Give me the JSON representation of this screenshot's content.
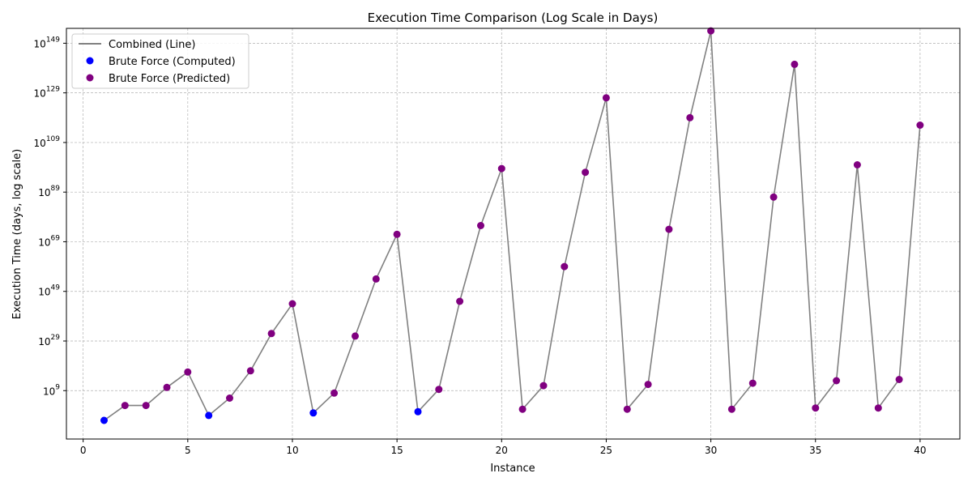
{
  "chart_data": {
    "type": "line",
    "title": "Execution Time Comparison (Log Scale in Days)",
    "xlabel": "Instance",
    "ylabel": "Execution Time (days, log scale)",
    "y_scale": "log",
    "grid": true,
    "legend_placement": "top-left",
    "xlim": [
      -0.8,
      41.9
    ],
    "xticks": [
      0,
      5,
      10,
      15,
      20,
      25,
      30,
      35,
      40
    ],
    "ylim_log10": [
      -10.5,
      155
    ],
    "yticks_log10": [
      9,
      29,
      49,
      69,
      89,
      109,
      129,
      149
    ],
    "yticks_labels": [
      {
        "base": "10",
        "exp": "9"
      },
      {
        "base": "10",
        "exp": "29"
      },
      {
        "base": "10",
        "exp": "49"
      },
      {
        "base": "10",
        "exp": "69"
      },
      {
        "base": "10",
        "exp": "89"
      },
      {
        "base": "10",
        "exp": "109"
      },
      {
        "base": "10",
        "exp": "129"
      },
      {
        "base": "10",
        "exp": "149"
      }
    ],
    "x": [
      1,
      2,
      3,
      4,
      5,
      6,
      7,
      8,
      9,
      10,
      11,
      12,
      13,
      14,
      15,
      16,
      17,
      18,
      19,
      20,
      21,
      22,
      23,
      24,
      25,
      26,
      27,
      28,
      29,
      30,
      31,
      32,
      33,
      34,
      35,
      36,
      37,
      38,
      39,
      40
    ],
    "log10_values": [
      -3,
      3,
      3,
      10.3,
      16.5,
      -1,
      6,
      17,
      32,
      44,
      0,
      8,
      31,
      54,
      72,
      0.5,
      9.5,
      45,
      75.5,
      98.5,
      1.5,
      11,
      59,
      97,
      127,
      1.5,
      11.5,
      74,
      119,
      154,
      1.5,
      12,
      87,
      140.5,
      2,
      13,
      100,
      2,
      13.5,
      116
    ],
    "series": [
      {
        "name": "Combined (Line)",
        "kind": "line",
        "color": "#808080"
      },
      {
        "name": "Brute Force (Computed)",
        "kind": "scatter",
        "color": "#0000ff",
        "x": [
          1,
          6,
          11,
          16
        ]
      },
      {
        "name": "Brute Force (Predicted)",
        "kind": "scatter",
        "color": "#800080",
        "x": [
          2,
          3,
          4,
          5,
          7,
          8,
          9,
          10,
          12,
          13,
          14,
          15,
          17,
          18,
          19,
          20,
          21,
          22,
          23,
          24,
          25,
          26,
          27,
          28,
          29,
          30,
          31,
          32,
          33,
          34,
          35,
          36,
          37,
          38,
          39,
          40
        ]
      }
    ]
  }
}
